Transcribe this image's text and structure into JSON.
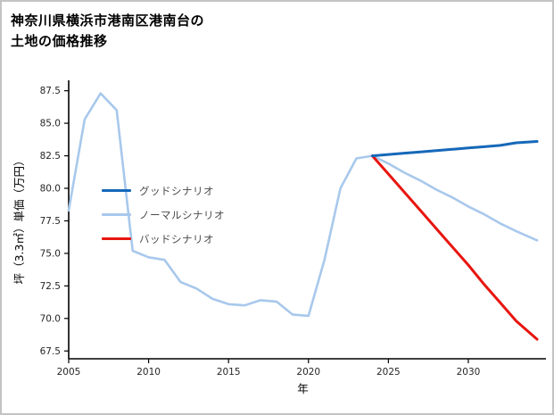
{
  "title": {
    "line1": "神奈川県横浜市港南区港南台の",
    "line2": "土地の価格推移"
  },
  "chart_data": {
    "type": "line",
    "title": "神奈川県横浜市港南区港南台の土地の価格推移",
    "xlabel": "年",
    "ylabel": "坪（3.3㎡）単価（万円）",
    "xlim": [
      2005,
      2034.3
    ],
    "ylim": [
      67.5,
      87.5
    ],
    "grid": false,
    "legend_position": "upper-left-inside",
    "xticks": [
      "2005",
      "2010",
      "2015",
      "2020",
      "2025",
      "2030"
    ],
    "yticks": [
      "67.5",
      "70.0",
      "72.5",
      "75.0",
      "77.5",
      "80.0",
      "82.5",
      "85.0",
      "87.5"
    ],
    "series": [
      {
        "name": "グッドシナリオ",
        "color": "#1668b8",
        "width": 3,
        "x": [
          2024,
          2025,
          2026,
          2027,
          2028,
          2029,
          2030,
          2031,
          2032,
          2033,
          2034.3
        ],
        "y": [
          82.5,
          82.6,
          82.7,
          82.8,
          82.9,
          83.0,
          83.1,
          83.2,
          83.3,
          83.5,
          83.6
        ]
      },
      {
        "name": "ノーマルシナリオ",
        "color": "#a8c8ec",
        "width": 2.6,
        "x": [
          2005,
          2006,
          2007,
          2008,
          2009,
          2010,
          2011,
          2012,
          2013,
          2014,
          2015,
          2016,
          2017,
          2018,
          2019,
          2020,
          2021,
          2022,
          2023,
          2024,
          2025,
          2026,
          2027,
          2028,
          2029,
          2030,
          2031,
          2032,
          2033,
          2034.3
        ],
        "y": [
          78.3,
          85.3,
          87.3,
          86.0,
          75.2,
          74.7,
          74.5,
          72.8,
          72.3,
          71.5,
          71.1,
          71.0,
          71.4,
          71.3,
          70.3,
          70.2,
          74.5,
          80.0,
          82.3,
          82.5,
          81.9,
          81.2,
          80.6,
          79.9,
          79.3,
          78.6,
          78.0,
          77.3,
          76.7,
          76.0
        ]
      },
      {
        "name": "バッドシナリオ",
        "color": "#e8150f",
        "width": 3,
        "x": [
          2024,
          2025,
          2026,
          2027,
          2028,
          2029,
          2030,
          2031,
          2032,
          2033,
          2034.3
        ],
        "y": [
          82.5,
          81.1,
          79.7,
          78.3,
          76.9,
          75.5,
          74.1,
          72.6,
          71.2,
          69.8,
          68.4
        ]
      }
    ]
  }
}
